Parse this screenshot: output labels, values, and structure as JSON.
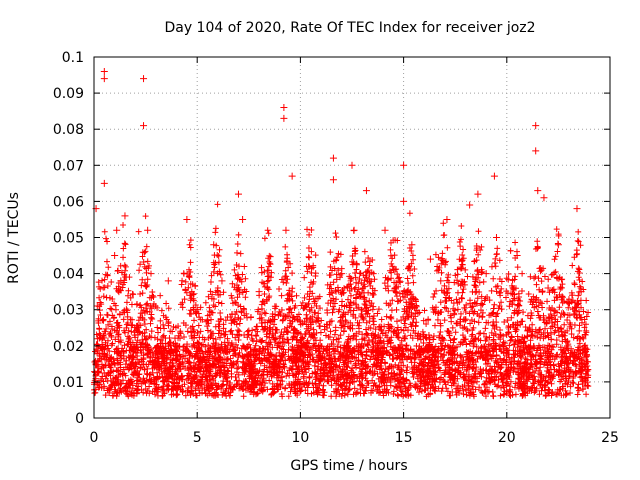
{
  "chart_data": {
    "type": "scatter",
    "title": "Day 104 of 2020, Rate Of TEC Index for receiver joz2",
    "xlabel": "GPS time / hours",
    "ylabel": "ROTI / TECUs",
    "xlim": [
      0,
      25
    ],
    "ylim": [
      0,
      0.1
    ],
    "x_ticks": [
      0,
      5,
      10,
      15,
      20,
      25
    ],
    "x_tick_labels": [
      "0",
      "5",
      "10",
      "15",
      "20",
      "25"
    ],
    "y_ticks": [
      0,
      0.01,
      0.02,
      0.03,
      0.04,
      0.05,
      0.06,
      0.07,
      0.08,
      0.09,
      0.1
    ],
    "y_tick_labels": [
      "0",
      "0.01",
      "0.02",
      "0.03",
      "0.04",
      "0.05",
      "0.06",
      "0.07",
      "0.08",
      "0.09",
      "0.1"
    ],
    "grid": true,
    "marker": "+",
    "series_color": "#ff0000",
    "series": [
      {
        "name": "ROTI",
        "x": [
          0.1,
          0.5,
          0.5,
          0.5,
          1.1,
          1.5,
          1.0,
          2.4,
          2.4,
          2.6,
          4.5,
          5.8,
          7.0,
          7.2,
          9.2,
          9.2,
          9.6,
          9.3,
          11.6,
          11.6,
          12.5,
          12.6,
          13.2,
          14.1,
          15.0,
          15.0,
          15.4,
          16.3,
          17.1,
          18.2,
          18.6,
          19.4,
          19.5,
          20.5,
          21.4,
          21.4,
          21.5,
          21.8,
          22.5,
          23.4,
          23.6,
          0.3,
          1.3,
          3.6,
          6.2,
          8.0,
          10.4,
          12.0,
          14.6,
          16.8,
          19.0,
          22.0,
          23.0
        ],
        "y": [
          0.058,
          0.096,
          0.094,
          0.065,
          0.052,
          0.056,
          0.045,
          0.094,
          0.081,
          0.052,
          0.055,
          0.048,
          0.062,
          0.055,
          0.086,
          0.083,
          0.067,
          0.052,
          0.072,
          0.066,
          0.07,
          0.052,
          0.063,
          0.052,
          0.07,
          0.06,
          0.048,
          0.044,
          0.055,
          0.059,
          0.062,
          0.067,
          0.05,
          0.045,
          0.081,
          0.074,
          0.063,
          0.061,
          0.048,
          0.058,
          0.035,
          0.032,
          0.038,
          0.038,
          0.038,
          0.035,
          0.042,
          0.04,
          0.036,
          0.038,
          0.04,
          0.036,
          0.032
        ]
      }
    ]
  }
}
